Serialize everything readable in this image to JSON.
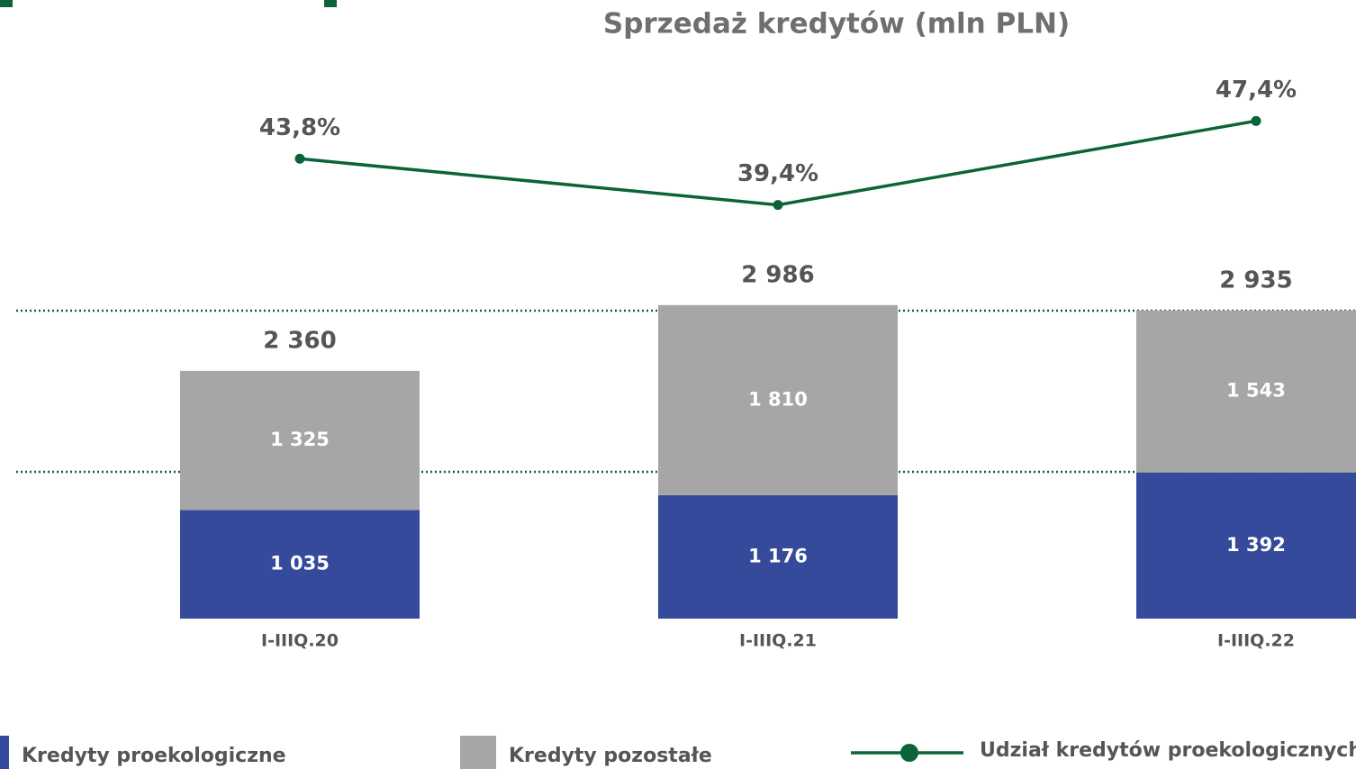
{
  "chart_data": {
    "type": "bar",
    "stacked": true,
    "title": "Sprzedaż kredytów (mln PLN)",
    "categories": [
      "I-IIIQ.20",
      "I-IIIQ.21",
      "I-IIIQ.22"
    ],
    "series": [
      {
        "name": "Kredyty proekologiczne",
        "color": "#354a9b",
        "values": [
          1035,
          1176,
          1392
        ],
        "value_labels": [
          "1 035",
          "1 176",
          "1 392"
        ]
      },
      {
        "name": "Kredyty pozostałe",
        "color": "#a6a6a6",
        "values": [
          1325,
          1810,
          1543
        ],
        "value_labels": [
          "1 325",
          "1 810",
          "1 543"
        ]
      },
      {
        "name": "Udział kredytów proekologicznych",
        "type": "line",
        "axis": "y2",
        "color": "#0b6437",
        "values": [
          43.8,
          39.4,
          47.4
        ],
        "value_labels": [
          "43,8%",
          "39,4%",
          "47,4%"
        ]
      }
    ],
    "totals": {
      "values": [
        2360,
        2986,
        2935
      ],
      "value_labels": [
        "2 360",
        "2 986",
        "2 935"
      ]
    },
    "ylim": [
      0,
      5000
    ],
    "y2lim": [
      0,
      50
    ]
  }
}
